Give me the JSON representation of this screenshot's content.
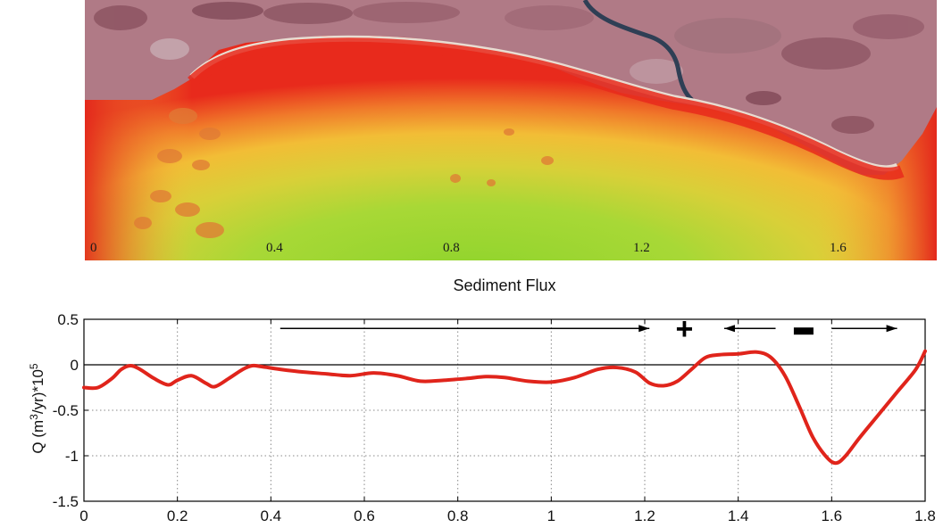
{
  "map": {
    "distance_labels": [
      "0",
      "0.4",
      "0.8",
      "1.2",
      "1.6"
    ],
    "colors": {
      "land": "#b07a86",
      "beach": "#e8ddd2",
      "shallow": "#e82a1c",
      "mid": "#f0c23a",
      "deep": "#8fd42c"
    }
  },
  "chart_data": {
    "type": "line",
    "title": "Sediment Flux",
    "ylabel": "Q (m³/yr)*10⁵",
    "ylabel_parts": {
      "pre": "Q (m",
      "sup1": "3",
      "mid": "/yr)*10",
      "sup2": "5"
    },
    "xlabel": "",
    "xlim": [
      0,
      1.8
    ],
    "ylim": [
      -1.5,
      0.5
    ],
    "xticks": [
      "0",
      "0.2",
      "0.4",
      "0.6",
      "0.8",
      "1",
      "1.2",
      "1.4",
      "1.6",
      "1.8"
    ],
    "yticks": [
      "0.5",
      "0",
      "-0.5",
      "-1",
      "-1.5"
    ],
    "grid": true,
    "series": [
      {
        "color": "#e0241b",
        "x": [
          0,
          0.03,
          0.06,
          0.08,
          0.1,
          0.12,
          0.15,
          0.18,
          0.2,
          0.23,
          0.26,
          0.28,
          0.31,
          0.34,
          0.36,
          0.38,
          0.42,
          0.47,
          0.52,
          0.57,
          0.62,
          0.67,
          0.72,
          0.77,
          0.82,
          0.86,
          0.9,
          0.95,
          1.0,
          1.05,
          1.1,
          1.14,
          1.18,
          1.21,
          1.24,
          1.27,
          1.3,
          1.33,
          1.36,
          1.4,
          1.44,
          1.47,
          1.5,
          1.53,
          1.56,
          1.59,
          1.61,
          1.63,
          1.66,
          1.7,
          1.74,
          1.78,
          1.8
        ],
        "y": [
          -0.25,
          -0.25,
          -0.15,
          -0.05,
          -0.01,
          -0.05,
          -0.15,
          -0.22,
          -0.17,
          -0.12,
          -0.2,
          -0.24,
          -0.15,
          -0.05,
          -0.01,
          -0.02,
          -0.05,
          -0.08,
          -0.1,
          -0.12,
          -0.09,
          -0.12,
          -0.18,
          -0.17,
          -0.15,
          -0.13,
          -0.14,
          -0.18,
          -0.19,
          -0.14,
          -0.05,
          -0.03,
          -0.08,
          -0.2,
          -0.23,
          -0.18,
          -0.05,
          0.08,
          0.11,
          0.12,
          0.14,
          0.08,
          -0.12,
          -0.45,
          -0.8,
          -1.02,
          -1.08,
          -1.0,
          -0.8,
          -0.55,
          -0.3,
          -0.05,
          0.15
        ]
      }
    ],
    "annotations": [
      {
        "kind": "arrow",
        "x1": 0.42,
        "x2": 1.21,
        "y": 0.4,
        "direction": "right"
      },
      {
        "kind": "text",
        "text": "+",
        "x": 1.285,
        "y": 0.4
      },
      {
        "kind": "arrow",
        "x1": 1.37,
        "x2": 1.48,
        "y": 0.4,
        "direction": "left"
      },
      {
        "kind": "text",
        "text": "‒",
        "x": 1.54,
        "y": 0.4
      },
      {
        "kind": "arrow",
        "x1": 1.6,
        "x2": 1.74,
        "y": 0.4,
        "direction": "right"
      }
    ]
  }
}
